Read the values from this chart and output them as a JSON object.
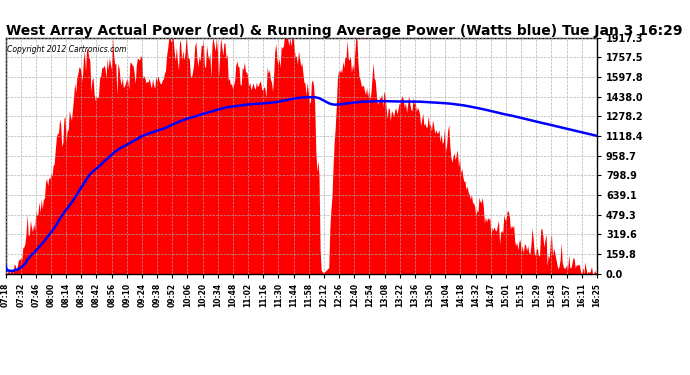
{
  "title": "West Array Actual Power (red) & Running Average Power (Watts blue) Tue Jan 3 16:29",
  "copyright": "Copyright 2012 Cartronics.com",
  "ylabel_values": [
    0.0,
    159.8,
    319.6,
    479.3,
    639.1,
    798.9,
    958.7,
    1118.4,
    1278.2,
    1438.0,
    1597.8,
    1757.5,
    1917.3
  ],
  "ymax": 1917.3,
  "ymin": 0.0,
  "background_color": "#ffffff",
  "plot_bg_color": "#ffffff",
  "grid_color": "#aaaaaa",
  "title_fontsize": 10,
  "fill_color": "red",
  "avg_line_color": "blue",
  "x_tick_labels": [
    "07:18",
    "07:32",
    "07:46",
    "08:00",
    "08:14",
    "08:28",
    "08:42",
    "08:56",
    "09:10",
    "09:24",
    "09:38",
    "09:52",
    "10:06",
    "10:20",
    "10:34",
    "10:48",
    "11:02",
    "11:16",
    "11:30",
    "11:44",
    "11:58",
    "12:12",
    "12:26",
    "12:40",
    "12:54",
    "13:08",
    "13:22",
    "13:36",
    "13:50",
    "14:04",
    "14:18",
    "14:32",
    "14:47",
    "15:01",
    "15:15",
    "15:29",
    "15:43",
    "15:57",
    "16:11",
    "16:25"
  ]
}
